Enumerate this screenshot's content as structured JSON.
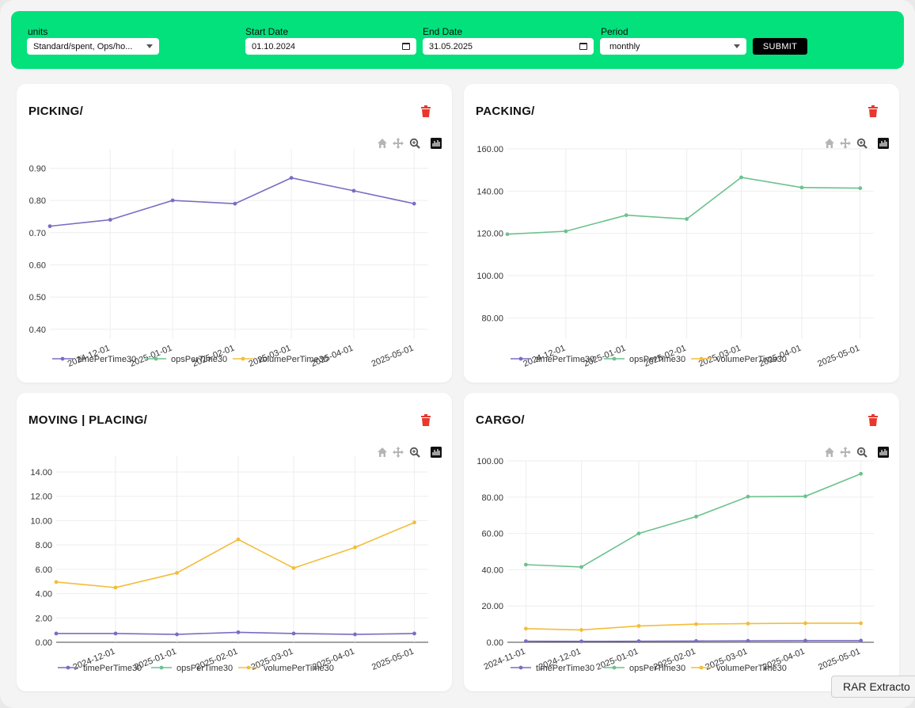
{
  "filters": {
    "units_label": "units",
    "units_value": "Standard/spent, Ops/ho...",
    "start_label": "Start Date",
    "start_value": "01.10.2024",
    "end_label": "End Date",
    "end_value": "31.05.2025",
    "period_label": "Period",
    "period_value": "monthly",
    "submit_label": "SUBMIT"
  },
  "colors": {
    "toolbar": "#02e17b",
    "timePerTime30": "#7b6cc2",
    "opsPerTime30": "#6cc28e",
    "volumePerTime30": "#f3bd3a",
    "trash": "#e8382e"
  },
  "legend": [
    "timePerTime30",
    "opsPerTime30",
    "volumePerTime30"
  ],
  "taskbar": {
    "label": "RAR Extracto"
  },
  "chart_data": [
    {
      "type": "line",
      "title": "PICKING/",
      "yticks": [
        "0.40",
        "0.50",
        "0.60",
        "0.70",
        "0.80",
        "0.90"
      ],
      "ylim": [
        0.37,
        0.96
      ],
      "xlim": [
        "2024-11-01",
        "2025-05-08"
      ],
      "xticks": [
        "2024-12-01",
        "2025-01-01",
        "2025-02-01",
        "2025-03-01",
        "2025-04-01",
        "2025-05-01"
      ],
      "series": [
        {
          "name": "timePerTime30",
          "x": [
            "2024-11-01",
            "2024-12-01",
            "2025-01-01",
            "2025-02-01",
            "2025-03-01",
            "2025-04-01",
            "2025-05-01"
          ],
          "values": [
            0.72,
            0.74,
            0.8,
            0.79,
            0.87,
            0.83,
            0.79
          ]
        }
      ]
    },
    {
      "type": "line",
      "title": "PACKING/",
      "yticks": [
        "80.00",
        "100.00",
        "120.00",
        "140.00",
        "160.00"
      ],
      "ylim": [
        70,
        160
      ],
      "xlim": [
        "2024-11-01",
        "2025-05-08"
      ],
      "xticks": [
        "2024-12-01",
        "2025-01-01",
        "2025-02-01",
        "2025-03-01",
        "2025-04-01",
        "2025-05-01"
      ],
      "series": [
        {
          "name": "opsPerTime30",
          "x": [
            "2024-11-01",
            "2024-12-01",
            "2025-01-01",
            "2025-02-01",
            "2025-03-01",
            "2025-04-01",
            "2025-05-01"
          ],
          "values": [
            119.6,
            121.0,
            128.6,
            126.8,
            146.5,
            141.7,
            141.4
          ]
        }
      ]
    },
    {
      "type": "line",
      "title": "MOVING | PLACING/",
      "yticks": [
        "0.00",
        "2.00",
        "4.00",
        "6.00",
        "8.00",
        "10.00",
        "12.00",
        "14.00"
      ],
      "ylim": [
        0,
        15.3
      ],
      "xlim": [
        "2024-11-01",
        "2025-05-08"
      ],
      "xticks": [
        "2024-12-01",
        "2025-01-01",
        "2025-02-01",
        "2025-03-01",
        "2025-04-01",
        "2025-05-01"
      ],
      "series": [
        {
          "name": "timePerTime30",
          "x": [
            "2024-11-01",
            "2024-12-01",
            "2025-01-01",
            "2025-02-01",
            "2025-03-01",
            "2025-04-01",
            "2025-05-01"
          ],
          "values": [
            0.72,
            0.72,
            0.65,
            0.82,
            0.72,
            0.65,
            0.72
          ]
        },
        {
          "name": "volumePerTime30",
          "x": [
            "2024-11-01",
            "2024-12-01",
            "2025-01-01",
            "2025-02-01",
            "2025-03-01",
            "2025-04-01",
            "2025-05-01"
          ],
          "values": [
            4.95,
            4.5,
            5.7,
            8.45,
            6.1,
            7.8,
            9.85
          ]
        }
      ]
    },
    {
      "type": "line",
      "title": "CARGO/",
      "yticks": [
        "0.00",
        "20.00",
        "40.00",
        "60.00",
        "80.00",
        "100.00"
      ],
      "ylim": [
        0,
        100
      ],
      "xlim": [
        "2024-10-22",
        "2025-05-08"
      ],
      "xticks": [
        "2024-11-01",
        "2024-12-01",
        "2025-01-01",
        "2025-02-01",
        "2025-03-01",
        "2025-04-01",
        "2025-05-01"
      ],
      "series": [
        {
          "name": "timePerTime30",
          "x": [
            "2024-11-01",
            "2024-12-01",
            "2025-01-01",
            "2025-02-01",
            "2025-03-01",
            "2025-04-01",
            "2025-05-01"
          ],
          "values": [
            0.6,
            0.5,
            0.6,
            0.7,
            0.8,
            0.9,
            0.9
          ]
        },
        {
          "name": "opsPerTime30",
          "x": [
            "2024-11-01",
            "2024-12-01",
            "2025-01-01",
            "2025-02-01",
            "2025-03-01",
            "2025-04-01",
            "2025-05-01"
          ],
          "values": [
            42.8,
            41.5,
            60.0,
            69.3,
            80.3,
            80.5,
            92.9
          ]
        },
        {
          "name": "volumePerTime30",
          "x": [
            "2024-11-01",
            "2024-12-01",
            "2025-01-01",
            "2025-02-01",
            "2025-03-01",
            "2025-04-01",
            "2025-05-01"
          ],
          "values": [
            7.5,
            6.8,
            9.0,
            10.0,
            10.3,
            10.5,
            10.5
          ]
        }
      ]
    }
  ]
}
